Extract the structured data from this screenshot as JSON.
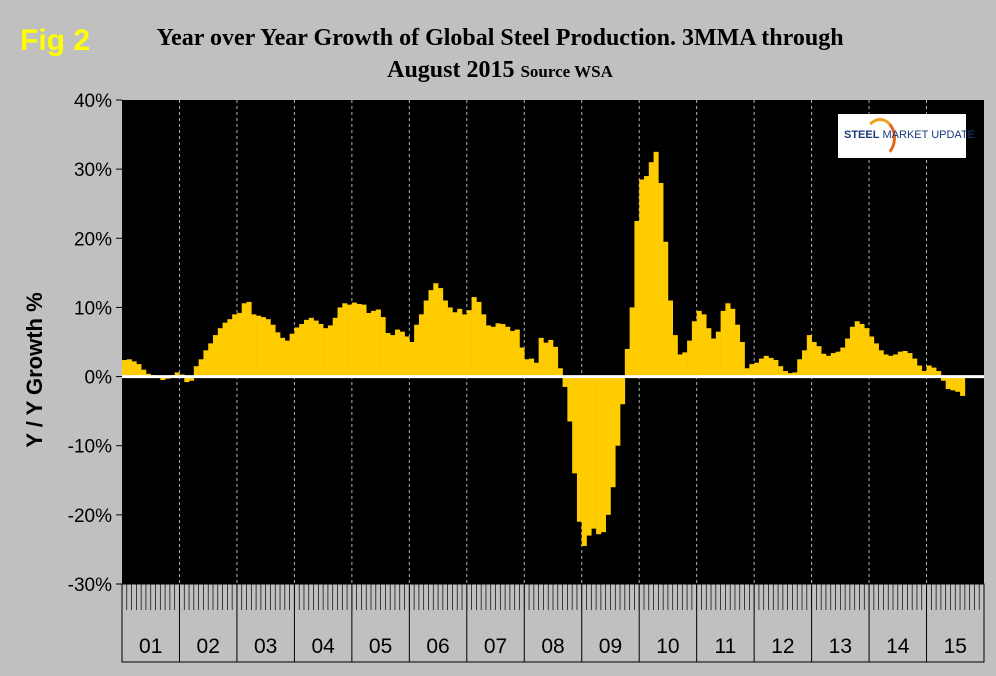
{
  "fig_label": "Fig 2",
  "title_main": "Year over Year Growth of Global Steel Production. 3MMA through",
  "title_line2": "August 2015",
  "title_source": "Source WSA",
  "logo": {
    "text_bold": "STEEL",
    "text_rest": " MARKET UPDATE"
  },
  "colors": {
    "bar": "#ffcc00",
    "plot_bg": "#000000",
    "page_bg": "#c0c0c0",
    "grid": "#ffffff",
    "title_accent": "#ffff00"
  },
  "chart_data": {
    "type": "bar",
    "ylabel": "Y / Y Growth %",
    "xlabel": "",
    "ylim": [
      -30,
      40
    ],
    "y_ticks": [
      "-30%",
      "-20%",
      "-10%",
      "0%",
      "10%",
      "20%",
      "30%",
      "40%"
    ],
    "x_period": "monthly, Jan 2001 – Aug 2015",
    "year_labels": [
      "01",
      "02",
      "03",
      "04",
      "05",
      "06",
      "07",
      "08",
      "09",
      "10",
      "11",
      "12",
      "13",
      "14",
      "15"
    ],
    "grid": "vertical dashed lines at year boundaries",
    "values": [
      2.4,
      2.5,
      2.2,
      1.8,
      1.0,
      0.4,
      0.2,
      0.0,
      -0.5,
      -0.3,
      0.2,
      0.6,
      0.3,
      -0.8,
      -0.6,
      1.5,
      2.5,
      3.8,
      4.8,
      6.0,
      7.0,
      7.8,
      8.3,
      9.0,
      9.2,
      10.6,
      10.8,
      9.0,
      8.8,
      8.6,
      8.3,
      7.5,
      6.4,
      5.6,
      5.2,
      6.2,
      7.1,
      7.6,
      8.2,
      8.5,
      8.1,
      7.6,
      7.0,
      7.4,
      8.5,
      10.0,
      10.6,
      10.4,
      10.7,
      10.5,
      10.4,
      9.2,
      9.5,
      9.7,
      8.6,
      6.3,
      6.0,
      6.8,
      6.5,
      5.8,
      5.0,
      7.5,
      9.0,
      11.0,
      12.5,
      13.5,
      12.8,
      11.0,
      10.0,
      9.3,
      9.8,
      9.0,
      9.6,
      11.5,
      10.8,
      9.0,
      7.4,
      7.2,
      7.7,
      7.6,
      7.2,
      6.6,
      6.8,
      4.2,
      2.5,
      2.6,
      2.0,
      5.6,
      4.9,
      5.3,
      4.3,
      1.2,
      -1.5,
      -6.5,
      -14.0,
      -21.0,
      -24.5,
      -23.0,
      -22.0,
      -22.8,
      -22.5,
      -20.0,
      -16.0,
      -10.0,
      -4.0,
      4.0,
      10.0,
      22.5,
      28.5,
      29.0,
      31.0,
      32.5,
      28.0,
      19.5,
      11.0,
      6.0,
      3.2,
      3.5,
      5.2,
      8.0,
      9.5,
      9.0,
      7.0,
      5.5,
      6.5,
      9.5,
      10.6,
      9.8,
      7.5,
      5.0,
      1.2,
      1.8,
      2.0,
      2.6,
      3.0,
      2.7,
      2.4,
      1.5,
      0.8,
      0.5,
      0.6,
      2.5,
      3.8,
      6.0,
      5.0,
      4.4,
      3.3,
      3.0,
      3.4,
      3.6,
      4.2,
      5.5,
      7.2,
      8.0,
      7.6,
      7.0,
      5.8,
      4.8,
      3.8,
      3.2,
      3.0,
      3.2,
      3.6,
      3.7,
      3.4,
      2.6,
      1.6,
      0.8,
      1.6,
      1.3,
      0.8,
      -0.6,
      -1.8,
      -2.0,
      -2.2,
      -2.8
    ]
  }
}
